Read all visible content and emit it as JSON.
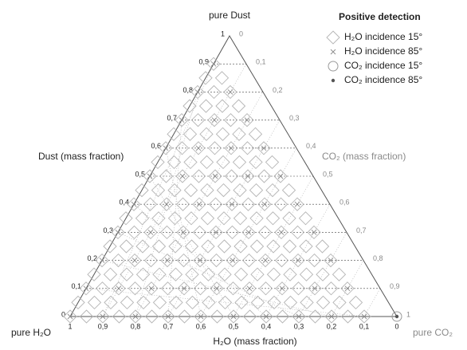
{
  "chart_data": {
    "type": "ternary",
    "top_label": "pure Dust",
    "left_corner_label": "pure H₂O",
    "right_corner_label": "pure CO₂",
    "dust_axis_label": "Dust (mass fraction)",
    "co2_axis_label": "CO₂ (mass fraction)",
    "h2o_axis_label": "H₂O (mass fraction)",
    "legend_title": "Positive detection",
    "dust_ticks": [
      0,
      {
        "value": 0.1,
        "label": "0,1"
      },
      {
        "value": 0.2,
        "label": "0,2"
      },
      {
        "value": 0.3,
        "label": "0,3"
      },
      {
        "value": 0.4,
        "label": "0,4"
      },
      {
        "value": 0.5,
        "label": "0,5"
      },
      {
        "value": 0.6,
        "label": "0,6"
      },
      {
        "value": 0.7,
        "label": "0,7"
      },
      {
        "value": 0.8,
        "label": "0,8"
      },
      {
        "value": 0.9,
        "label": "0,9"
      },
      1
    ],
    "co2_ticks": [
      0,
      {
        "value": 0.1,
        "label": "0,1"
      },
      {
        "value": 0.2,
        "label": "0,2"
      },
      {
        "value": 0.3,
        "label": "0,3"
      },
      {
        "value": 0.4,
        "label": "0,4"
      },
      {
        "value": 0.5,
        "label": "0,5"
      },
      {
        "value": 0.6,
        "label": "0,6"
      },
      {
        "value": 0.7,
        "label": "0,7"
      },
      {
        "value": 0.8,
        "label": "0,8"
      },
      {
        "value": 0.9,
        "label": "0,9"
      },
      1
    ],
    "h2o_ticks": [
      1,
      {
        "value": 0.9,
        "label": "0,9"
      },
      {
        "value": 0.8,
        "label": "0,8"
      },
      {
        "value": 0.7,
        "label": "0,7"
      },
      {
        "value": 0.6,
        "label": "0,6"
      },
      {
        "value": 0.5,
        "label": "0,5"
      },
      {
        "value": 0.4,
        "label": "0,4"
      },
      {
        "value": 0.3,
        "label": "0,3"
      },
      {
        "value": 0.2,
        "label": "0,2"
      },
      {
        "value": 0.1,
        "label": "0,1"
      },
      0
    ],
    "grid": true,
    "series": [
      {
        "name": "H₂O incidence 15°",
        "marker": "diamond",
        "color": "#b4b4b4",
        "rows": [
          {
            "dust": 0,
            "co2": [
              0,
              0.05,
              0.1,
              0.15,
              0.2,
              0.25,
              0.3,
              0.35,
              0.4,
              0.45,
              0.5,
              0.55,
              0.6,
              0.65,
              0.7,
              0.75,
              0.8,
              0.85,
              0.9
            ]
          },
          {
            "dust": 0.05,
            "co2": [
              0,
              0.05,
              0.1,
              0.15,
              0.2,
              0.25,
              0.3,
              0.35,
              0.4,
              0.45,
              0.5,
              0.55,
              0.6,
              0.65,
              0.7,
              0.75,
              0.8,
              0.85
            ]
          },
          {
            "dust": 0.1,
            "co2": [
              0,
              0.05,
              0.1,
              0.15,
              0.2,
              0.25,
              0.3,
              0.35,
              0.4,
              0.45,
              0.5,
              0.55,
              0.6,
              0.65,
              0.7,
              0.75,
              0.8
            ]
          },
          {
            "dust": 0.15,
            "co2": [
              0,
              0.05,
              0.1,
              0.15,
              0.2,
              0.25,
              0.3,
              0.35,
              0.4,
              0.45,
              0.5,
              0.55,
              0.6,
              0.65,
              0.7,
              0.75
            ]
          },
          {
            "dust": 0.2,
            "co2": [
              0,
              0.05,
              0.1,
              0.15,
              0.2,
              0.25,
              0.3,
              0.35,
              0.4,
              0.45,
              0.5,
              0.55,
              0.6,
              0.65,
              0.7
            ]
          },
          {
            "dust": 0.25,
            "co2": [
              0,
              0.05,
              0.1,
              0.15,
              0.2,
              0.25,
              0.3,
              0.35,
              0.4,
              0.45,
              0.5,
              0.55,
              0.6,
              0.65
            ]
          },
          {
            "dust": 0.3,
            "co2": [
              0,
              0.05,
              0.1,
              0.15,
              0.2,
              0.25,
              0.3,
              0.35,
              0.4,
              0.45,
              0.5,
              0.55,
              0.6
            ]
          },
          {
            "dust": 0.35,
            "co2": [
              0,
              0.05,
              0.1,
              0.15,
              0.2,
              0.25,
              0.3,
              0.35,
              0.4,
              0.45,
              0.5,
              0.55
            ]
          },
          {
            "dust": 0.4,
            "co2": [
              0,
              0.05,
              0.1,
              0.15,
              0.2,
              0.25,
              0.3,
              0.35,
              0.4,
              0.45,
              0.5
            ]
          },
          {
            "dust": 0.45,
            "co2": [
              0,
              0.05,
              0.1,
              0.15,
              0.2,
              0.25,
              0.3,
              0.35,
              0.4,
              0.45
            ]
          },
          {
            "dust": 0.5,
            "co2": [
              0,
              0.05,
              0.1,
              0.15,
              0.2,
              0.25,
              0.3,
              0.35,
              0.4
            ]
          },
          {
            "dust": 0.55,
            "co2": [
              0,
              0.05,
              0.1,
              0.15,
              0.2,
              0.25,
              0.3,
              0.35
            ]
          },
          {
            "dust": 0.6,
            "co2": [
              0,
              0.05,
              0.1,
              0.15,
              0.2,
              0.25,
              0.3
            ]
          },
          {
            "dust": 0.65,
            "co2": [
              0,
              0.05,
              0.1,
              0.15,
              0.2,
              0.25
            ]
          },
          {
            "dust": 0.7,
            "co2": [
              0,
              0.05,
              0.1,
              0.15,
              0.2
            ]
          },
          {
            "dust": 0.75,
            "co2": [
              0,
              0.05,
              0.1,
              0.15
            ]
          },
          {
            "dust": 0.8,
            "co2": [
              0,
              0.05,
              0.1
            ]
          },
          {
            "dust": 0.85,
            "co2": [
              0,
              0.05
            ]
          },
          {
            "dust": 0.9,
            "co2": [
              0
            ]
          }
        ]
      },
      {
        "name": "H₂O incidence 85°",
        "marker": "cross",
        "color": "#8c8c8c",
        "rows": [
          {
            "dust": 0,
            "co2": [
              0,
              0.1,
              0.2,
              0.3,
              0.4,
              0.5,
              0.6,
              0.7,
              0.8,
              0.9
            ]
          },
          {
            "dust": 0.1,
            "co2": [
              0,
              0.1,
              0.2,
              0.3,
              0.4,
              0.5,
              0.6,
              0.7,
              0.8
            ]
          },
          {
            "dust": 0.2,
            "co2": [
              0,
              0.1,
              0.2,
              0.3,
              0.4,
              0.5,
              0.6,
              0.7
            ]
          },
          {
            "dust": 0.3,
            "co2": [
              0,
              0.1,
              0.2,
              0.3,
              0.4,
              0.5,
              0.6
            ]
          },
          {
            "dust": 0.4,
            "co2": [
              0,
              0.1,
              0.2,
              0.3,
              0.4,
              0.5
            ]
          },
          {
            "dust": 0.5,
            "co2": [
              0,
              0.1,
              0.2,
              0.3,
              0.4
            ]
          },
          {
            "dust": 0.6,
            "co2": [
              0,
              0.1,
              0.2,
              0.3
            ]
          },
          {
            "dust": 0.7,
            "co2": [
              0,
              0.1,
              0.2
            ]
          },
          {
            "dust": 0.8,
            "co2": [
              0,
              0.1
            ]
          },
          {
            "dust": 0.9,
            "co2": [
              0
            ]
          }
        ]
      },
      {
        "name": "CO₂ incidence 15°",
        "marker": "circle",
        "color": "#9a9a9a",
        "rows": [
          {
            "dust": 0,
            "co2": [
              1
            ]
          }
        ]
      },
      {
        "name": "CO₂ incidence 85°",
        "marker": "dot",
        "color": "#555555",
        "rows": [
          {
            "dust": 0,
            "co2": [
              1
            ]
          }
        ]
      }
    ]
  }
}
